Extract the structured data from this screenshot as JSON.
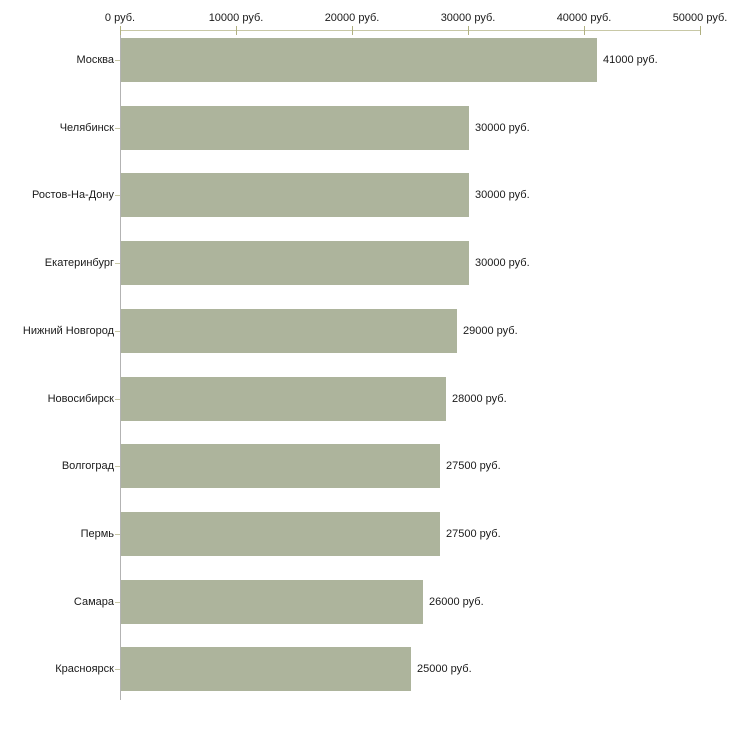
{
  "chart_data": {
    "type": "bar",
    "orientation": "horizontal",
    "title": "",
    "xlabel": "",
    "ylabel": "",
    "grid": false,
    "legend": null,
    "unit": "руб.",
    "categories": [
      "Москва",
      "Челябинск",
      "Ростов-На-Дону",
      "Екатеринбург",
      "Нижний Новгород",
      "Новосибирск",
      "Волгоград",
      "Пермь",
      "Самара",
      "Красноярск"
    ],
    "values": [
      41000,
      30000,
      30000,
      30000,
      29000,
      28000,
      27500,
      27500,
      26000,
      25000
    ],
    "value_labels": [
      "41000 руб.",
      "30000 руб.",
      "30000 руб.",
      "30000 руб.",
      "29000 руб.",
      "28000 руб.",
      "27500 руб.",
      "27500 руб.",
      "26000 руб.",
      "25000 руб."
    ],
    "x_axis": {
      "position": "top",
      "min": 0,
      "max": 50000,
      "tick_interval": 10000,
      "tick_values": [
        0,
        10000,
        20000,
        30000,
        40000,
        50000
      ],
      "tick_labels": [
        "0 руб.",
        "10000 руб.",
        "20000 руб.",
        "30000 руб.",
        "40000 руб.",
        "50000 руб."
      ]
    },
    "colors": {
      "bar_fill": "#adb49c",
      "top_axis_line": "#c8c8a6",
      "x_tick_mark": "#b0b080",
      "y_axis_line": "#b3b3b3",
      "category_tick": "#c8c8a6",
      "text": "#1a1a1a",
      "background": "#ffffff"
    }
  }
}
